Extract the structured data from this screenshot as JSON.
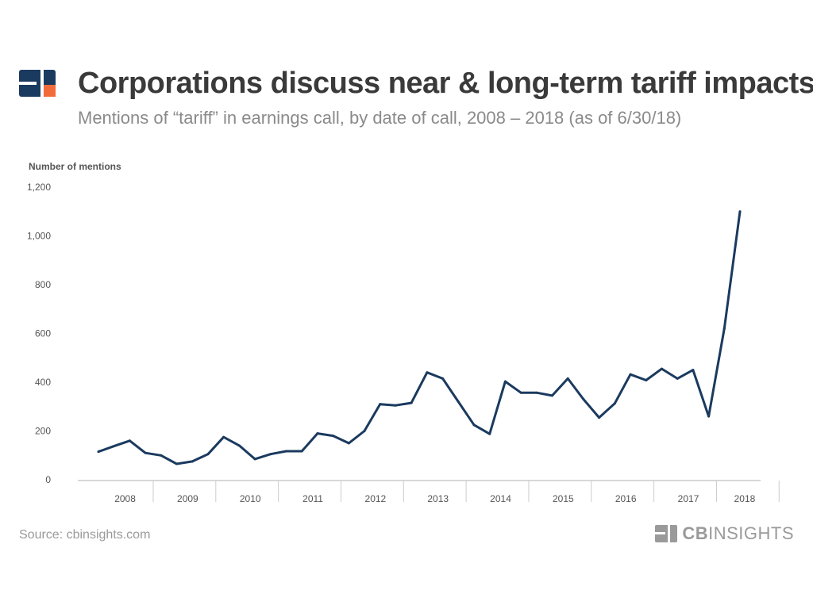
{
  "header": {
    "title": "Corporations discuss near & long-term tariff impacts",
    "subtitle": "Mentions of “tariff” in earnings call, by date of call, 2008  – 2018 (as of 6/30/18)"
  },
  "footer": {
    "source": "Source: cbinsights.com",
    "brand_bold": "CB",
    "brand_light": "INSIGHTS"
  },
  "colors": {
    "line": "#1b3a5f",
    "logo_navy": "#1b3a5f",
    "logo_orange": "#f26b3a",
    "axis": "#cccccc",
    "text": "#555555"
  },
  "chart_data": {
    "type": "line",
    "ylabel": "Number of mentions",
    "ylim": [
      0,
      1200
    ],
    "yticks": [
      0,
      200,
      400,
      600,
      800,
      1000,
      1200
    ],
    "ytick_labels": [
      "0",
      "200",
      "400",
      "600",
      "800",
      "1,000",
      "1,200"
    ],
    "year_labels": [
      "2008",
      "2009",
      "2010",
      "2011",
      "2012",
      "2013",
      "2014",
      "2015",
      "2016",
      "2017",
      "2018"
    ],
    "x": [
      "2008 Q1",
      "2008 Q2",
      "2008 Q3",
      "2008 Q4",
      "2009 Q1",
      "2009 Q2",
      "2009 Q3",
      "2009 Q4",
      "2010 Q1",
      "2010 Q2",
      "2010 Q3",
      "2010 Q4",
      "2011 Q1",
      "2011 Q2",
      "2011 Q3",
      "2011 Q4",
      "2012 Q1",
      "2012 Q2",
      "2012 Q3",
      "2012 Q4",
      "2013 Q1",
      "2013 Q2",
      "2013 Q3",
      "2013 Q4",
      "2014 Q1",
      "2014 Q2",
      "2014 Q3",
      "2014 Q4",
      "2015 Q1",
      "2015 Q2",
      "2015 Q3",
      "2015 Q4",
      "2016 Q1",
      "2016 Q2",
      "2016 Q3",
      "2016 Q4",
      "2017 Q1",
      "2017 Q2",
      "2017 Q3",
      "2017 Q4",
      "2018 Q1",
      "2018 Q2"
    ],
    "series": [
      {
        "values": [
          115,
          138,
          160,
          110,
          100,
          65,
          75,
          105,
          175,
          140,
          85,
          105,
          117,
          117,
          190,
          180,
          150,
          200,
          310,
          305,
          315,
          440,
          415,
          320,
          225,
          188,
          403,
          357,
          357,
          345,
          415,
          330,
          255,
          313,
          432,
          408,
          455,
          415,
          450,
          260,
          620,
          1100
        ]
      }
    ]
  }
}
